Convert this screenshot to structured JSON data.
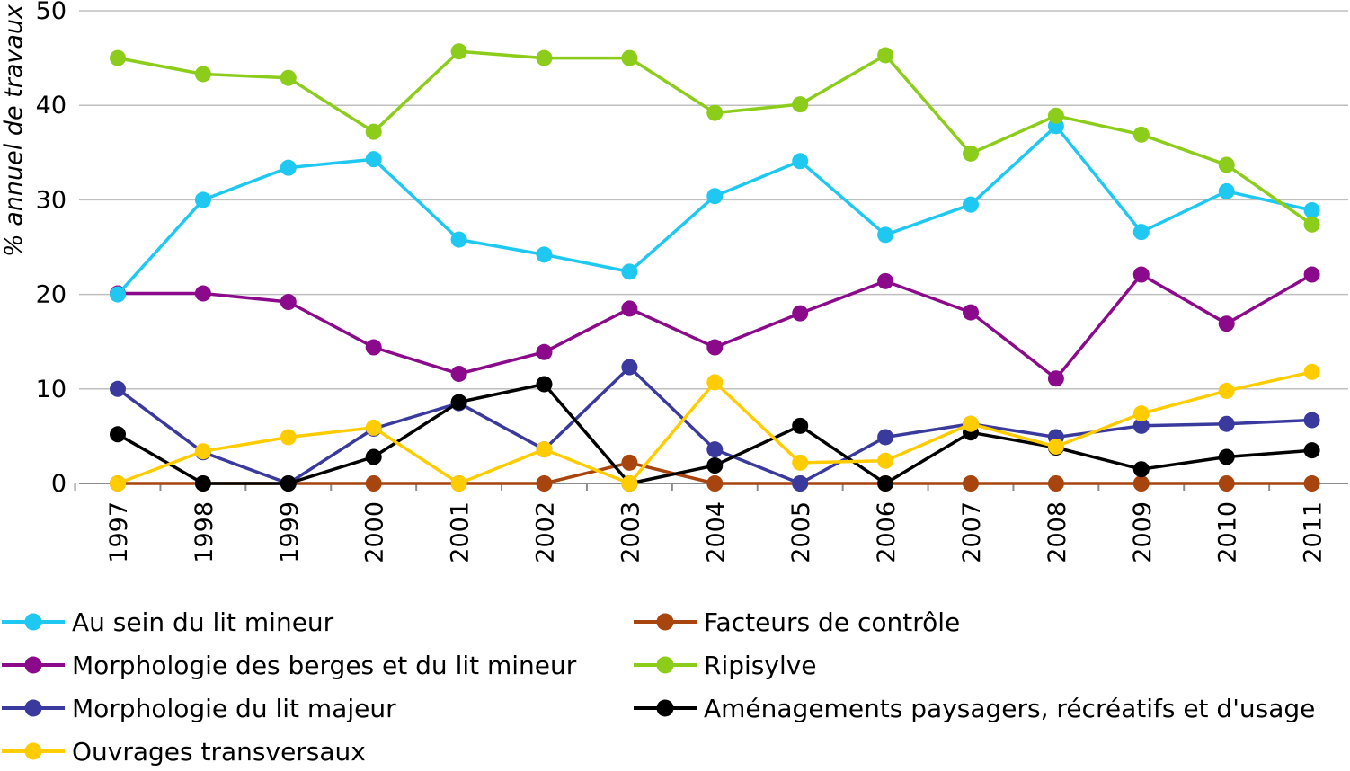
{
  "chart_data": {
    "type": "line",
    "title": "",
    "xlabel": "",
    "ylabel": "% annuel de travaux",
    "ylim": [
      0,
      50
    ],
    "yticks": [
      0,
      10,
      20,
      30,
      40,
      50
    ],
    "grid": "horizontal",
    "legend_position": "bottom",
    "categories": [
      "1997",
      "1998",
      "1999",
      "2000",
      "2001",
      "2002",
      "2003",
      "2004",
      "2005",
      "2006",
      "2007",
      "2008",
      "2009",
      "2010",
      "2011"
    ],
    "series": [
      {
        "name": "Au sein du lit mineur",
        "color": "#1EC8F0",
        "values": [
          20,
          30,
          33.4,
          34.3,
          25.8,
          24.2,
          22.4,
          30.4,
          34.1,
          26.3,
          29.5,
          37.8,
          26.6,
          30.9,
          28.9
        ]
      },
      {
        "name": "Morphologie des berges et du lit mineur",
        "color": "#8B0A8B",
        "values": [
          20.1,
          20.1,
          19.2,
          14.4,
          11.6,
          13.9,
          18.5,
          14.4,
          18.0,
          21.4,
          18.1,
          11.1,
          22.1,
          16.9,
          22.1
        ]
      },
      {
        "name": "Morphologie du lit majeur",
        "color": "#3A3A9E",
        "values": [
          10.0,
          3.3,
          0,
          5.8,
          8.5,
          3.6,
          12.3,
          3.6,
          0,
          4.9,
          6.3,
          4.9,
          6.1,
          6.3,
          6.7
        ]
      },
      {
        "name": "Ouvrages transversaux",
        "color": "#FFCC00",
        "values": [
          0,
          3.4,
          4.9,
          5.9,
          0,
          3.6,
          0,
          10.7,
          2.2,
          2.4,
          6.3,
          3.9,
          7.4,
          9.8,
          11.8
        ]
      },
      {
        "name": "Facteurs de contrôle",
        "color": "#A8440D",
        "values": [
          0,
          0,
          0,
          0,
          0,
          0,
          2.2,
          0,
          0,
          0,
          0,
          0,
          0,
          0,
          0
        ]
      },
      {
        "name": "Ripisylve",
        "color": "#8CCC1A",
        "values": [
          45.0,
          43.3,
          42.9,
          37.2,
          45.7,
          45.0,
          45.0,
          39.2,
          40.1,
          45.3,
          34.9,
          38.9,
          36.9,
          33.7,
          27.4
        ]
      },
      {
        "name": "Aménagements paysagers, récréatifs et d'usage",
        "color": "#000000",
        "values": [
          5.2,
          0,
          0,
          2.8,
          8.6,
          10.5,
          0,
          1.9,
          6.1,
          0,
          5.4,
          3.8,
          1.5,
          2.8,
          3.5
        ]
      }
    ],
    "draw_order": [
      4,
      2,
      6,
      3,
      1,
      0,
      5
    ]
  }
}
